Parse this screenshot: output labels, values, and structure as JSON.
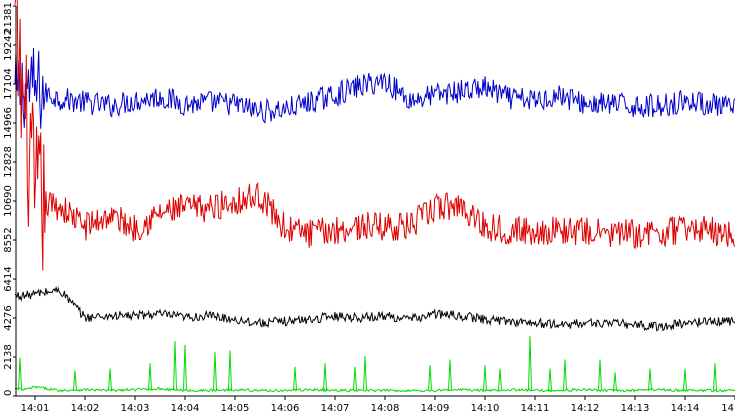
{
  "chart_data": {
    "type": "line",
    "title": "",
    "xlabel": "",
    "ylabel": "",
    "grid": false,
    "legend": "none",
    "ylim": [
      0,
      21381
    ],
    "xlim": [
      "14:00:37",
      "14:15:00"
    ],
    "y_ticks": [
      "0",
      "2138",
      "4276",
      "6414",
      "8552",
      "10690",
      "12828",
      "14966",
      "17104",
      "19242",
      "21381"
    ],
    "y_tick_values": [
      0,
      2138,
      4276,
      6414,
      8552,
      10690,
      12828,
      14966,
      17104,
      19242,
      21381
    ],
    "x_ticks": [
      "14:01",
      "14:02",
      "14:03",
      "14:04",
      "14:05",
      "14:06",
      "14:07",
      "14:08",
      "14:09",
      "14:10",
      "14:11",
      "14:12",
      "14:13",
      "14:14",
      "14"
    ],
    "x_tick_minutes": [
      1,
      2,
      3,
      4,
      5,
      6,
      7,
      8,
      9,
      10,
      11,
      12,
      13,
      14,
      15
    ],
    "x_minutes": [
      0.6,
      0.8,
      1.0,
      1.5,
      2.0,
      2.5,
      3.0,
      3.5,
      4.0,
      4.5,
      5.0,
      5.5,
      6.0,
      6.5,
      7.0,
      7.5,
      8.0,
      8.5,
      9.0,
      9.5,
      10.0,
      10.5,
      11.0,
      11.5,
      12.0,
      12.5,
      13.0,
      13.5,
      14.0,
      14.5,
      15.0
    ],
    "series": [
      {
        "color": "#0000cc",
        "values": [
          16500,
          17000,
          16800,
          16300,
          16100,
          15900,
          16200,
          16400,
          16000,
          16100,
          16000,
          15600,
          15700,
          16100,
          16500,
          17000,
          17300,
          16200,
          16500,
          16700,
          16900,
          16300,
          16200,
          16500,
          16000,
          16000,
          15900,
          15900,
          16200,
          16000,
          15700
        ]
      },
      {
        "color": "#dd0000",
        "values": [
          20000,
          15000,
          10600,
          10400,
          9300,
          9900,
          9200,
          10000,
          10300,
          10300,
          10700,
          11000,
          9200,
          8900,
          9100,
          9300,
          9300,
          9300,
          10300,
          10500,
          9300,
          9100,
          9000,
          9100,
          9000,
          8900,
          8900,
          8900,
          9200,
          9100,
          8800
        ]
      },
      {
        "color": "#000000",
        "values": [
          5500,
          5500,
          5600,
          5800,
          4300,
          4400,
          4400,
          4500,
          4300,
          4400,
          4200,
          4000,
          4100,
          4200,
          4400,
          4300,
          4400,
          4200,
          4500,
          4400,
          4200,
          4100,
          4000,
          3900,
          4000,
          4000,
          3900,
          3800,
          4000,
          4100,
          4100
        ]
      },
      {
        "color": "#00dd00",
        "values": [
          400,
          350,
          500,
          300,
          350,
          300,
          350,
          400,
          300,
          300,
          350,
          300,
          300,
          350,
          300,
          300,
          300,
          300,
          300,
          350,
          300,
          350,
          300,
          300,
          350,
          300,
          300,
          350,
          300,
          300,
          300
        ]
      }
    ],
    "spikes": {
      "green": [
        {
          "x": 0.7,
          "y": 2100
        },
        {
          "x": 1.8,
          "y": 1400
        },
        {
          "x": 2.5,
          "y": 1500
        },
        {
          "x": 3.3,
          "y": 1800
        },
        {
          "x": 3.8,
          "y": 3000
        },
        {
          "x": 4.0,
          "y": 2800
        },
        {
          "x": 4.6,
          "y": 2400
        },
        {
          "x": 4.9,
          "y": 2500
        },
        {
          "x": 6.2,
          "y": 1600
        },
        {
          "x": 6.8,
          "y": 1800
        },
        {
          "x": 7.4,
          "y": 1600
        },
        {
          "x": 7.6,
          "y": 2200
        },
        {
          "x": 8.9,
          "y": 1700
        },
        {
          "x": 9.3,
          "y": 2000
        },
        {
          "x": 10.0,
          "y": 1700
        },
        {
          "x": 10.3,
          "y": 1500
        },
        {
          "x": 10.9,
          "y": 3300
        },
        {
          "x": 11.3,
          "y": 1500
        },
        {
          "x": 11.6,
          "y": 2000
        },
        {
          "x": 12.3,
          "y": 2000
        },
        {
          "x": 12.6,
          "y": 1300
        },
        {
          "x": 13.3,
          "y": 1500
        },
        {
          "x": 14.0,
          "y": 1500
        },
        {
          "x": 14.6,
          "y": 1800
        }
      ]
    }
  }
}
